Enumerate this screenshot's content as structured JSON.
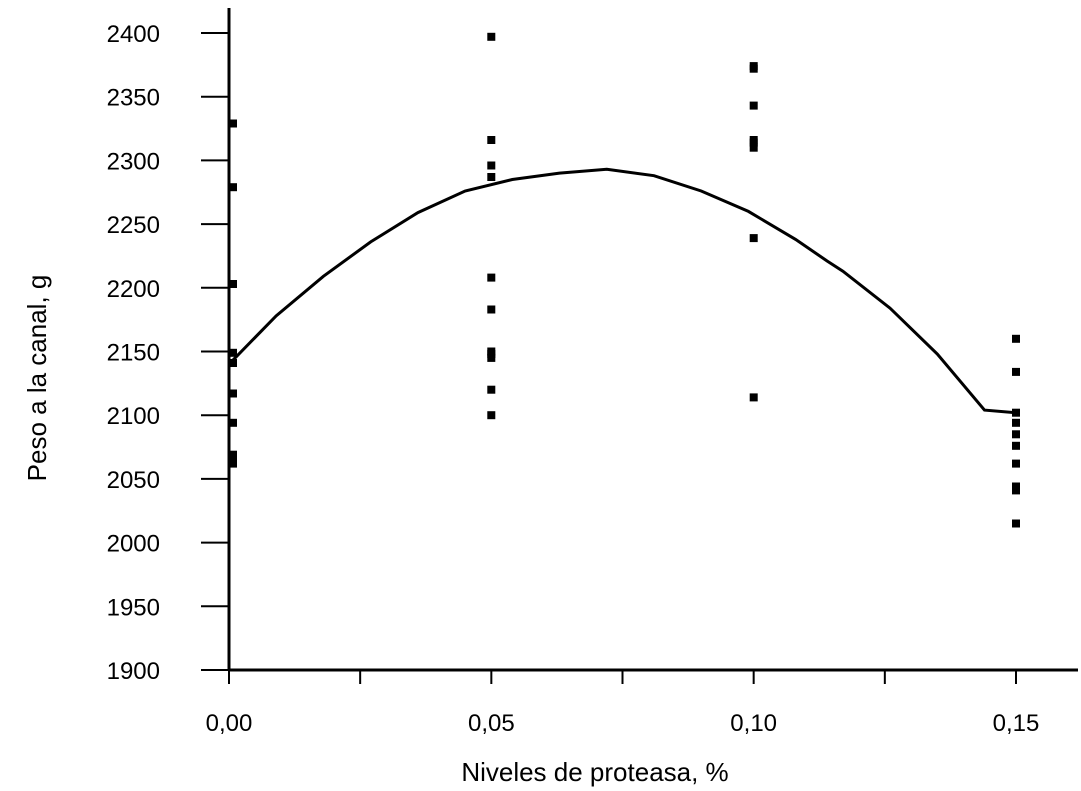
{
  "chart_data": {
    "type": "scatter",
    "xlabel": "Niveles de proteasa, %",
    "ylabel": "Peso a la canal, g",
    "xlim": [
      0,
      0.162
    ],
    "ylim": [
      1900,
      2400
    ],
    "x_ticks": [
      "0,00",
      "0,05",
      "0,10",
      "0,15"
    ],
    "x_tick_values": [
      0,
      0.05,
      0.1,
      0.15
    ],
    "x_minor_ticks": [
      0.025,
      0.075,
      0.125
    ],
    "y_ticks": [
      "1900",
      "1950",
      "2000",
      "2050",
      "2100",
      "2150",
      "2200",
      "2250",
      "2300",
      "2350",
      "2400"
    ],
    "y_tick_values": [
      1900,
      1950,
      2000,
      2050,
      2100,
      2150,
      2200,
      2250,
      2300,
      2350,
      2400
    ],
    "grid": false,
    "series": [
      {
        "kind": "points",
        "marker": "square",
        "points": [
          [
            0,
            2329
          ],
          [
            0,
            2279
          ],
          [
            0,
            2203
          ],
          [
            0,
            2149
          ],
          [
            0,
            2141
          ],
          [
            0,
            2117
          ],
          [
            0,
            2094
          ],
          [
            0,
            2069
          ],
          [
            0,
            2066
          ],
          [
            0,
            2062
          ],
          [
            0.05,
            2397
          ],
          [
            0.05,
            2316
          ],
          [
            0.05,
            2296
          ],
          [
            0.05,
            2287
          ],
          [
            0.05,
            2208
          ],
          [
            0.05,
            2183
          ],
          [
            0.05,
            2150
          ],
          [
            0.05,
            2148
          ],
          [
            0.05,
            2145
          ],
          [
            0.05,
            2120
          ],
          [
            0.05,
            2100
          ],
          [
            0.1,
            2374
          ],
          [
            0.1,
            2372
          ],
          [
            0.1,
            2343
          ],
          [
            0.1,
            2316
          ],
          [
            0.1,
            2314
          ],
          [
            0.1,
            2310
          ],
          [
            0.1,
            2239
          ],
          [
            0.1,
            2114
          ],
          [
            0.15,
            2160
          ],
          [
            0.15,
            2134
          ],
          [
            0.15,
            2102
          ],
          [
            0.15,
            2094
          ],
          [
            0.15,
            2085
          ],
          [
            0.15,
            2076
          ],
          [
            0.15,
            2062
          ],
          [
            0.15,
            2044
          ],
          [
            0.15,
            2041
          ],
          [
            0.15,
            2015
          ]
        ]
      },
      {
        "kind": "fit",
        "line": "solid",
        "points": [
          [
            0,
            2140
          ],
          [
            0.009,
            2178
          ],
          [
            0.018,
            2209
          ],
          [
            0.027,
            2236
          ],
          [
            0.036,
            2259
          ],
          [
            0.045,
            2276
          ],
          [
            0.054,
            2285
          ],
          [
            0.063,
            2290
          ],
          [
            0.072,
            2293
          ],
          [
            0.081,
            2288
          ],
          [
            0.09,
            2276
          ],
          [
            0.099,
            2260
          ],
          [
            0.108,
            2238
          ],
          [
            0.114,
            2221
          ],
          [
            0.117,
            2213
          ],
          [
            0.126,
            2184
          ],
          [
            0.135,
            2148
          ],
          [
            0.144,
            2104
          ],
          [
            0.15,
            2102
          ]
        ]
      }
    ]
  }
}
